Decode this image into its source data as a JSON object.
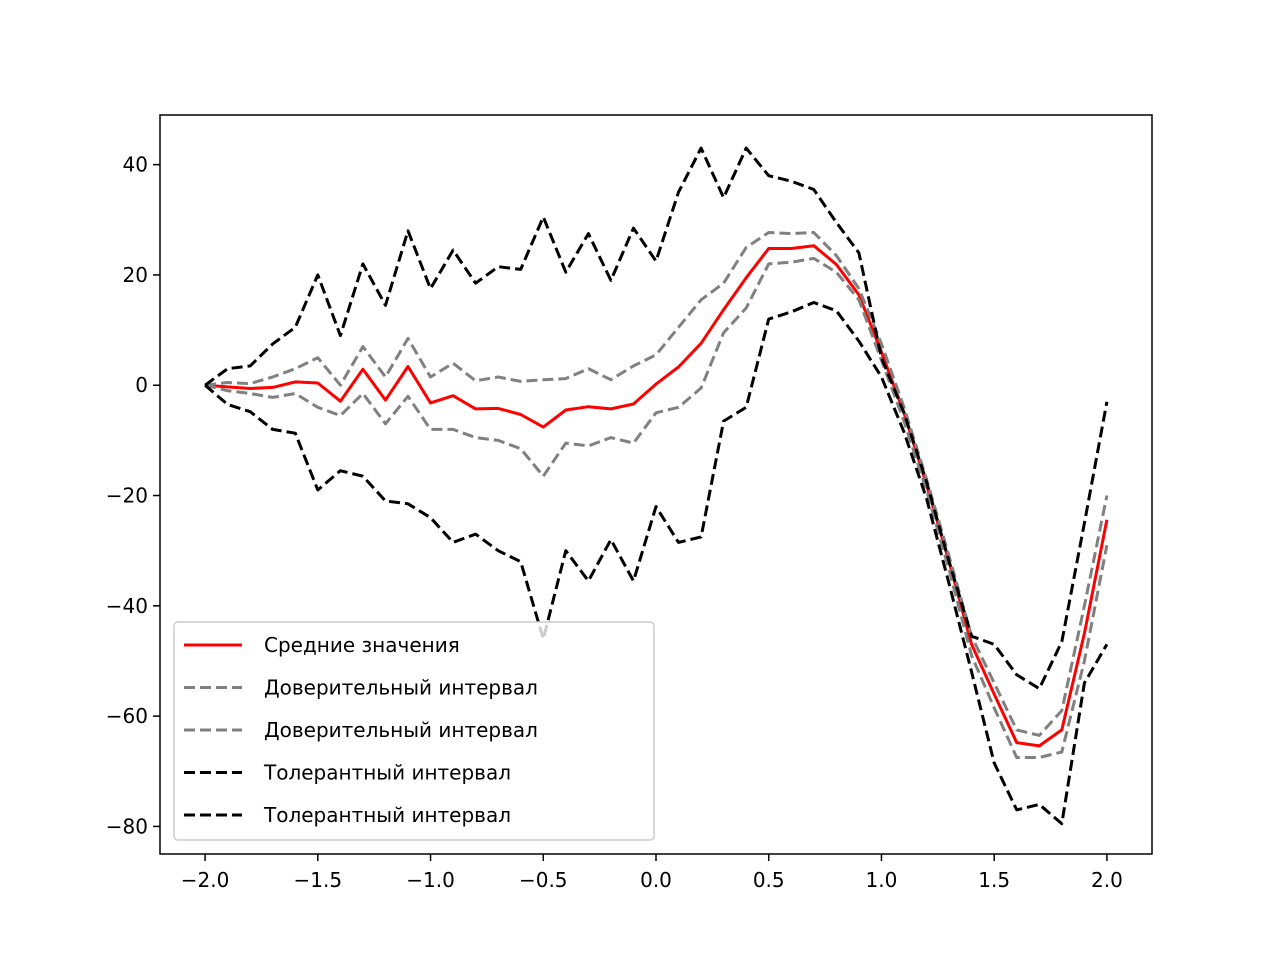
{
  "chart_data": {
    "type": "line",
    "title": "",
    "xlabel": "",
    "ylabel": "",
    "xlim": [
      -2.2,
      2.2
    ],
    "ylim": [
      -85,
      49
    ],
    "grid": false,
    "legend_position": "lower-left",
    "x_ticks": [
      -2.0,
      -1.5,
      -1.0,
      -0.5,
      0.0,
      0.5,
      1.0,
      1.5,
      2.0
    ],
    "x_tick_labels": [
      "−2.0",
      "−1.5",
      "−1.0",
      "−0.5",
      "0.0",
      "0.5",
      "1.0",
      "1.5",
      "2.0"
    ],
    "y_ticks": [
      40,
      20,
      0,
      -20,
      -40,
      -60,
      -80
    ],
    "y_tick_labels": [
      "40",
      "20",
      "0",
      "−20",
      "−40",
      "−60",
      "−80"
    ],
    "x": [
      -2.0,
      -1.9,
      -1.8,
      -1.7,
      -1.6,
      -1.5,
      -1.4,
      -1.3,
      -1.2,
      -1.1,
      -1.0,
      -0.9,
      -0.8,
      -0.7,
      -0.6,
      -0.5,
      -0.4,
      -0.3,
      -0.2,
      -0.1,
      0.0,
      0.1,
      0.2,
      0.3,
      0.4,
      0.5,
      0.6,
      0.7,
      0.8,
      0.9,
      1.0,
      1.1,
      1.2,
      1.3,
      1.4,
      1.5,
      1.6,
      1.7,
      1.8,
      1.9,
      2.0
    ],
    "series": [
      {
        "name": "Средние значения",
        "color": "#ff0000",
        "style": "solid",
        "values": [
          0,
          -0.3,
          -0.6,
          -0.4,
          0.6,
          0.4,
          -2.9,
          2.9,
          -2.7,
          3.4,
          -3.2,
          -1.9,
          -4.3,
          -4.2,
          -5.3,
          -7.6,
          -4.5,
          -3.9,
          -4.3,
          -3.4,
          0.2,
          3.3,
          7.6,
          13.7,
          19.5,
          24.8,
          24.8,
          25.3,
          21.9,
          16.4,
          6,
          -5,
          -18,
          -32,
          -47,
          -56,
          -64.8,
          -65.4,
          -62.5,
          -45,
          -24.4
        ]
      },
      {
        "name": "Доверительный интервал",
        "color": "#808080",
        "style": "dashed",
        "values": [
          0,
          0.5,
          0.3,
          1.5,
          3,
          5,
          0,
          7,
          1.5,
          8.5,
          1.5,
          4,
          0.8,
          1.5,
          0.7,
          1,
          1.2,
          3,
          1,
          3.5,
          5.5,
          10.5,
          15.5,
          18.5,
          25,
          27.7,
          27.5,
          27.7,
          23.5,
          17.5,
          7.5,
          -4,
          -17,
          -31,
          -45.5,
          -54,
          -62.5,
          -63.5,
          -59,
          -40,
          -20
        ]
      },
      {
        "name": "Доверительный интервал",
        "color": "#808080",
        "style": "dashed",
        "values": [
          0,
          -1,
          -1.5,
          -2.2,
          -1.5,
          -4,
          -5.5,
          -1.5,
          -7,
          -2,
          -8,
          -8,
          -9.5,
          -10,
          -11.5,
          -16.5,
          -10.5,
          -11,
          -9.5,
          -10.5,
          -5,
          -4,
          -0.5,
          9.5,
          14,
          22,
          22.3,
          23,
          20.5,
          15.5,
          4.5,
          -6.5,
          -19,
          -33.5,
          -49,
          -58.5,
          -67.5,
          -67.5,
          -66.5,
          -50,
          -29
        ]
      },
      {
        "name": "Толерантный интервал",
        "color": "#000000",
        "style": "dashed",
        "values": [
          0,
          3,
          3.5,
          7.5,
          10.5,
          20,
          9,
          22,
          14.5,
          28,
          17.5,
          24.5,
          18.5,
          21.5,
          21,
          30.5,
          20.5,
          27.5,
          19,
          28.5,
          22.5,
          35,
          43,
          34,
          43,
          38,
          37,
          35.5,
          29.5,
          24,
          5,
          -5,
          -17.5,
          -32,
          -45.5,
          -47,
          -52.5,
          -55,
          -46.5,
          -25,
          -3
        ]
      },
      {
        "name": "Толерантный интервал",
        "color": "#000000",
        "style": "dashed",
        "values": [
          0,
          -3.5,
          -4.8,
          -8,
          -8.7,
          -19,
          -15.5,
          -16.5,
          -21,
          -21.5,
          -24,
          -28.5,
          -27,
          -30,
          -32,
          -46,
          -30,
          -35.5,
          -28,
          -35.5,
          -22,
          -28.5,
          -27.5,
          -6.5,
          -4,
          12,
          13.3,
          15,
          13.5,
          8,
          1.5,
          -8.5,
          -20.5,
          -36,
          -52,
          -68.5,
          -77,
          -76,
          -79.5,
          -54,
          -47
        ]
      }
    ]
  }
}
